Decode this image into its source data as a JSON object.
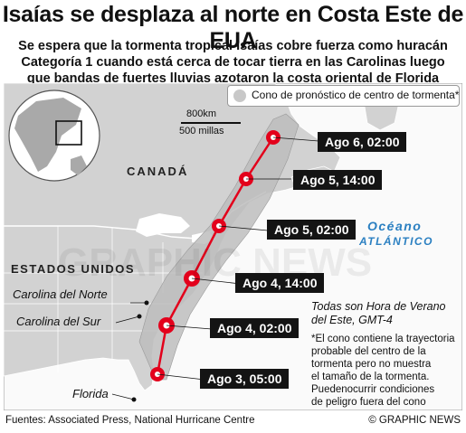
{
  "title": "Isaías se desplaza al norte en Costa Este de EUA",
  "subtitle_lines": [
    "Se espera que la tormenta tropical Isaías cobre fuerza como huracán",
    "Categoría 1 cuando está cerca de tocar tierra en las Carolinas luego",
    "que bandas de fuertes lluvias azotaron la costa oriental de Florida"
  ],
  "legend": {
    "label": "Cono de pronóstico de centro de tormenta*",
    "swatch_color": "#c8c8c8"
  },
  "scale": {
    "km": "800km",
    "miles": "500 millas"
  },
  "regions": {
    "canada": "CANADÁ",
    "usa": "ESTADOS UNIDOS",
    "ocean_line1": "Océano",
    "ocean_line2": "ATLÁNTICO"
  },
  "places": {
    "north_carolina": "Carolina del Norte",
    "south_carolina": "Carolina del Sur",
    "florida": "Florida"
  },
  "forecast_points": [
    {
      "label": "Ago 3, 05:00"
    },
    {
      "label": "Ago 4, 02:00"
    },
    {
      "label": "Ago 4, 14:00"
    },
    {
      "label": "Ago 5, 02:00"
    },
    {
      "label": "Ago 5, 14:00"
    },
    {
      "label": "Ago 6, 02:00"
    }
  ],
  "notes": {
    "timezone_line1": "Todas son Hora de Verano",
    "timezone_line2": "del Este, GMT-4",
    "cone_lines": [
      "*El cono contiene la trayectoria",
      "probable del centro de la",
      "tormenta pero no muestra",
      "el tamaño de la tormenta.",
      "Puedenocurrir condiciones",
      "de peligro fuera del cono"
    ]
  },
  "watermark": "GRAPHIC NEWS",
  "footer": {
    "sources": "Fuentes: Associated Press, National Hurricane Centre",
    "credit": "© GRAPHIC NEWS"
  },
  "colors": {
    "land": "#d2d2d2",
    "sea": "#ffffff",
    "track": "#e3001b",
    "tag_bg": "#141414",
    "ocean_text": "#2a7fc1",
    "cone": "#bdbdbd"
  }
}
